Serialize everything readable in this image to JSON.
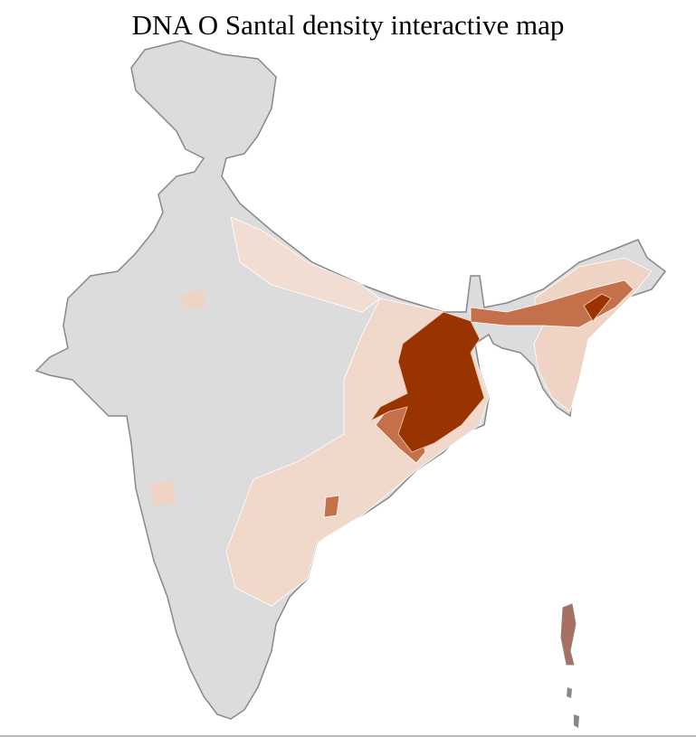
{
  "title": "DNA O Santal density interactive map",
  "colors": {
    "no_data": "#dcdcdc",
    "very_low": "#f3e2d8",
    "low": "#e9c6b3",
    "medium": "#c4704a",
    "high": "#993300",
    "state_border": "#888888",
    "district_border": "#ffffff"
  }
}
